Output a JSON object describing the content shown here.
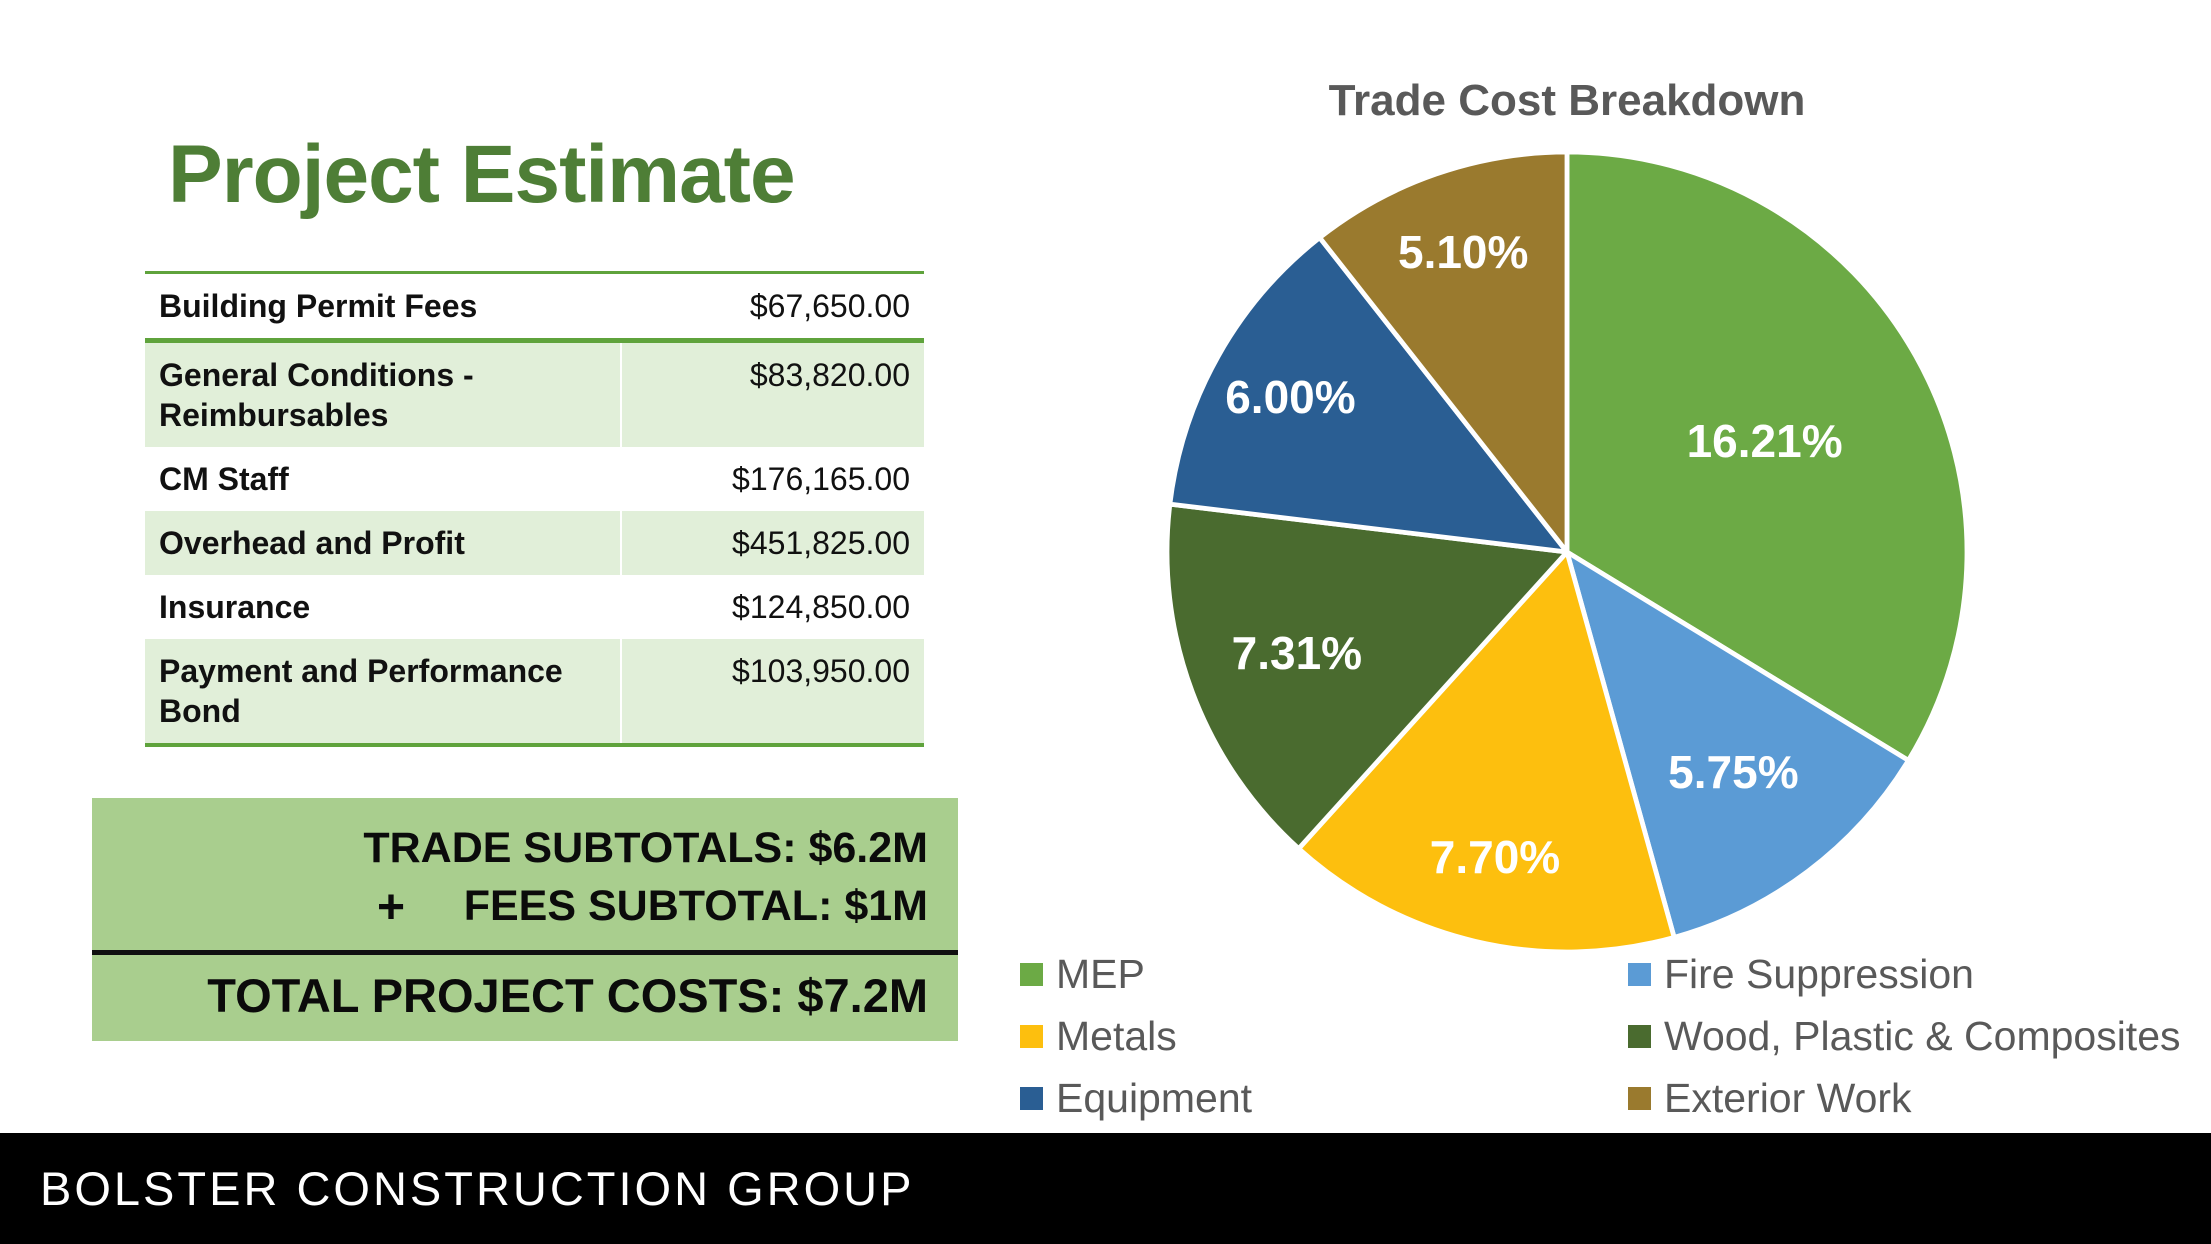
{
  "slide": {
    "title": "Project Estimate",
    "footer_company": "BOLSTER CONSTRUCTION GROUP"
  },
  "colors": {
    "title_green": "#4E7E36",
    "rule_green": "#5FA33C",
    "row_shade_green": "#E1EFD9",
    "summary_box_green": "#A9CE8E",
    "heading_gray": "#595959",
    "footer_black": "#000000"
  },
  "estimate_table": {
    "rows": [
      {
        "label": "Building Permit Fees",
        "amount": "$67,650.00",
        "shaded": false
      },
      {
        "label": "General Conditions - Reimbursables",
        "amount": "$83,820.00",
        "shaded": true
      },
      {
        "label": "CM Staff",
        "amount": "$176,165.00",
        "shaded": false
      },
      {
        "label": "Overhead and Profit",
        "amount": "$451,825.00",
        "shaded": true
      },
      {
        "label": "Insurance",
        "amount": "$124,850.00",
        "shaded": false
      },
      {
        "label": "Payment and Performance Bond",
        "amount": "$103,950.00",
        "shaded": true
      }
    ]
  },
  "summary": {
    "trade_subtotals": "TRADE SUBTOTALS: $6.2M",
    "plus_sign": "+",
    "fees_subtotal": "FEES SUBTOTAL: $1M",
    "total": "TOTAL PROJECT COSTS: $7.2M"
  },
  "chart_data": {
    "type": "pie",
    "title": "Trade Cost Breakdown",
    "categories": [
      "MEP",
      "Fire Suppression",
      "Metals",
      "Wood, Plastic & Composites",
      "Equipment",
      "Exterior Work"
    ],
    "slices": [
      {
        "label": "MEP",
        "value": 16.21,
        "display": "16.21%",
        "color": "#6CAA45"
      },
      {
        "label": "Fire Suppression",
        "value": 5.75,
        "display": "5.75%",
        "color": "#5B9BD5"
      },
      {
        "label": "Metals",
        "value": 7.7,
        "display": "7.70%",
        "color": "#FDBF0E"
      },
      {
        "label": "Wood, Plastic & Composites",
        "value": 7.31,
        "display": "7.31%",
        "color": "#4A6B2F"
      },
      {
        "label": "Equipment",
        "value": 6.0,
        "display": "6.00%",
        "color": "#2A5E93"
      },
      {
        "label": "Exterior Work",
        "value": 5.1,
        "display": "5.10%",
        "color": "#9A7A2E"
      }
    ],
    "start_angle_deg": 0,
    "direction": "clockwise",
    "slice_border_color": "#ffffff",
    "label_radius_fractions": [
      0.55,
      0.67,
      0.76,
      0.7,
      0.77,
      0.77
    ],
    "legend_position": "bottom-two-columns"
  }
}
